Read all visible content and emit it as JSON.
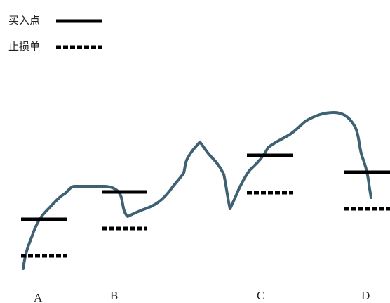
{
  "legend": {
    "entry": {
      "label": "买入点"
    },
    "stop": {
      "label": "止损单"
    }
  },
  "points": [
    {
      "label": "A"
    },
    {
      "label": "B"
    },
    {
      "label": "C"
    },
    {
      "label": "D"
    }
  ],
  "colors": {
    "curve": "#3e6273",
    "entry": "#000000",
    "stop": "#000000",
    "text": "#222222"
  }
}
